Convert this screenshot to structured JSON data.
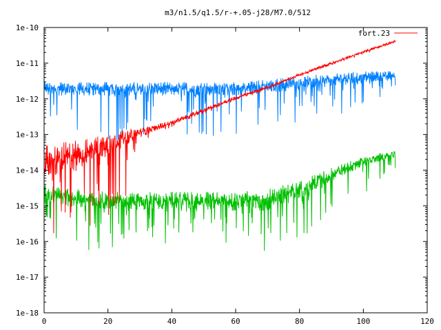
{
  "chart_data": {
    "type": "line",
    "title": "m3/n1.5/q1.5/r-+.05-j28/M7.0/512",
    "xlabel": "",
    "ylabel": "",
    "xlim": [
      0,
      120
    ],
    "ylim": [
      1e-18,
      1e-10
    ],
    "y_scale": "log",
    "grid": false,
    "legend_position": "top-right",
    "x_ticks": [
      "0",
      "20",
      "40",
      "60",
      "80",
      "100",
      "120"
    ],
    "y_ticks": [
      "1e-10",
      "1e-11",
      "1e-12",
      "1e-13",
      "1e-14",
      "1e-15",
      "1e-16",
      "1e-17",
      "1e-18"
    ],
    "series": [
      {
        "name": "fort.23",
        "color": "#ff0000",
        "x": [
          0,
          5,
          10,
          15,
          20,
          25,
          30,
          40,
          50,
          60,
          70,
          80,
          90,
          100,
          110
        ],
        "y": [
          1e-14,
          1.2e-14,
          1.5e-14,
          2.5e-14,
          3.5e-14,
          6e-14,
          1e-13,
          2e-13,
          4.5e-13,
          1e-12,
          2e-12,
          4.5e-12,
          9.5e-12,
          2e-11,
          4e-11
        ],
        "y_min": [
          8e-17,
          2e-16,
          1.5e-16,
          2e-16,
          2e-16,
          1e-15,
          6e-14,
          1.6e-13,
          3.8e-13,
          8.5e-13,
          1.8e-12,
          4e-12,
          8.5e-12,
          1.8e-11,
          3.6e-11
        ],
        "y_max": [
          5e-14,
          6e-14,
          7e-14,
          8e-14,
          1.2e-13,
          1.4e-13,
          1.5e-13,
          2.5e-13,
          5.5e-13,
          1.2e-12,
          2.3e-12,
          5.2e-12,
          1.1e-11,
          2.2e-11,
          4.4e-11
        ]
      },
      {
        "name": "",
        "color": "#0080ff",
        "x": [
          0,
          10,
          20,
          30,
          40,
          50,
          60,
          70,
          80,
          90,
          100,
          110
        ],
        "y": [
          1.5e-12,
          1.5e-12,
          1.5e-12,
          1.5e-12,
          1.5e-12,
          1.5e-12,
          1.5e-12,
          1.8e-12,
          2.2e-12,
          2.7e-12,
          3.3e-12,
          4e-12
        ],
        "y_min": [
          3e-13,
          1e-13,
          4e-14,
          1e-13,
          1e-13,
          1e-13,
          5e-14,
          2e-13,
          2e-13,
          3e-13,
          6e-13,
          2e-12
        ],
        "y_max": [
          3e-12,
          3e-12,
          3e-12,
          3e-12,
          3e-12,
          3e-12,
          3e-12,
          3.5e-12,
          4.5e-12,
          5e-12,
          6e-12,
          6e-12
        ]
      },
      {
        "name": "",
        "color": "#00c000",
        "x": [
          0,
          10,
          20,
          30,
          40,
          50,
          60,
          70,
          80,
          90,
          100,
          110
        ],
        "y": [
          1.5e-15,
          1.2e-15,
          1e-15,
          1e-15,
          1e-15,
          1e-15,
          1e-15,
          1e-15,
          2e-15,
          6e-15,
          1.5e-14,
          2.5e-14
        ],
        "y_min": [
          2e-16,
          3e-17,
          5e-17,
          2e-16,
          5e-17,
          1e-16,
          2e-17,
          5e-17,
          1e-16,
          4e-16,
          2e-15,
          1e-14
        ],
        "y_max": [
          4e-15,
          3e-15,
          2.5e-15,
          2.5e-15,
          2.5e-15,
          2.5e-15,
          2.5e-15,
          3e-15,
          5e-15,
          1.2e-14,
          2.5e-14,
          3.5e-14
        ]
      }
    ]
  }
}
